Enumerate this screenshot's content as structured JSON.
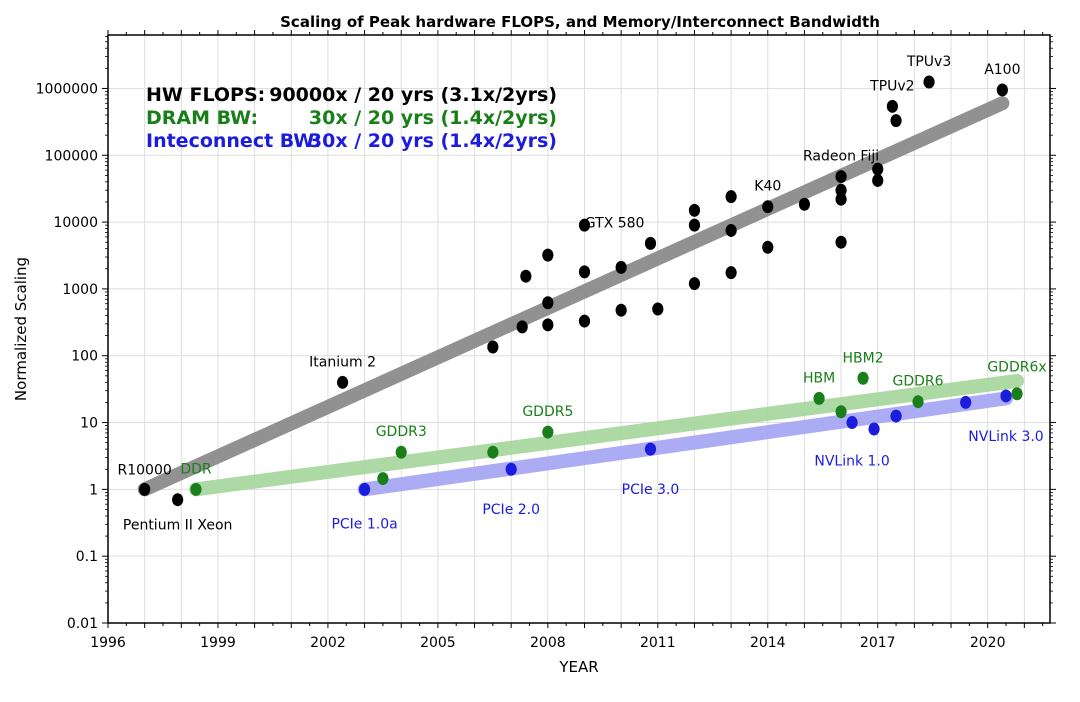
{
  "chart_data": {
    "type": "scatter",
    "title": "Scaling of Peak hardware FLOPS, and Memory/Interconnect Bandwidth",
    "xlabel": "YEAR",
    "ylabel": "Normalized Scaling",
    "xlim": [
      1996,
      2021.7
    ],
    "ylim_log10": [
      -2,
      6.8
    ],
    "yscale": "log",
    "grid": true,
    "x_ticks": [
      {
        "value": 1996,
        "label": "1996"
      },
      {
        "value": 1999,
        "label": "1999"
      },
      {
        "value": 2002,
        "label": "2002"
      },
      {
        "value": 2005,
        "label": "2005"
      },
      {
        "value": 2008,
        "label": "2008"
      },
      {
        "value": 2011,
        "label": "2011"
      },
      {
        "value": 2014,
        "label": "2014"
      },
      {
        "value": 2017,
        "label": "2017"
      },
      {
        "value": 2020,
        "label": "2020"
      }
    ],
    "y_ticks": [
      {
        "value": 0.01,
        "label": "0.01"
      },
      {
        "value": 0.1,
        "label": "0.1"
      },
      {
        "value": 1,
        "label": "1"
      },
      {
        "value": 10,
        "label": "10"
      },
      {
        "value": 100,
        "label": "100"
      },
      {
        "value": 1000,
        "label": "1000"
      },
      {
        "value": 10000,
        "label": "10000"
      },
      {
        "value": 100000,
        "label": "100000"
      },
      {
        "value": 1000000,
        "label": "1000000"
      }
    ],
    "legend": [
      {
        "name": "HW FLOPS:",
        "value": "90000x / 20 yrs (3.1x/2yrs)",
        "color": "#000000"
      },
      {
        "name": "DRAM BW:",
        "value": "30x / 20 yrs (1.4x/2yrs)",
        "color": "#1a7f1a"
      },
      {
        "name": "Inteconnect BW:",
        "value": "30x / 20 yrs (1.4x/2yrs)",
        "color": "#1c1cdc"
      }
    ],
    "trend_lines": [
      {
        "name": "HW FLOPS trend",
        "color": "#8c8c8c",
        "x": [
          1997,
          2020.4
        ],
        "y": [
          1,
          600000
        ]
      },
      {
        "name": "DRAM BW trend",
        "color": "#a8d8a0",
        "x": [
          1998.4,
          2020.8
        ],
        "y": [
          1,
          42
        ]
      },
      {
        "name": "Interconnect BW trend",
        "color": "#a8a8f4",
        "x": [
          2003,
          2020.5
        ],
        "y": [
          1,
          23
        ]
      }
    ],
    "series": [
      {
        "name": "HW FLOPS",
        "color": "#000000",
        "points": [
          {
            "x": 1997.0,
            "y": 1
          },
          {
            "x": 1997.9,
            "y": 0.7
          },
          {
            "x": 2002.4,
            "y": 40
          },
          {
            "x": 2006.5,
            "y": 135
          },
          {
            "x": 2007.3,
            "y": 270
          },
          {
            "x": 2007.4,
            "y": 1550
          },
          {
            "x": 2008.0,
            "y": 290
          },
          {
            "x": 2008.0,
            "y": 620
          },
          {
            "x": 2008.0,
            "y": 3200
          },
          {
            "x": 2009.0,
            "y": 330
          },
          {
            "x": 2009.0,
            "y": 1800
          },
          {
            "x": 2009.0,
            "y": 9000
          },
          {
            "x": 2010.0,
            "y": 480
          },
          {
            "x": 2010.0,
            "y": 2100
          },
          {
            "x": 2010.8,
            "y": 4800
          },
          {
            "x": 2011.0,
            "y": 500
          },
          {
            "x": 2012.0,
            "y": 1200
          },
          {
            "x": 2012.0,
            "y": 9000
          },
          {
            "x": 2012.0,
            "y": 15000
          },
          {
            "x": 2013.0,
            "y": 1750
          },
          {
            "x": 2013.0,
            "y": 7500
          },
          {
            "x": 2013.0,
            "y": 24000
          },
          {
            "x": 2014.0,
            "y": 4200
          },
          {
            "x": 2014.0,
            "y": 17000
          },
          {
            "x": 2015.0,
            "y": 18500
          },
          {
            "x": 2016.0,
            "y": 5000
          },
          {
            "x": 2016.0,
            "y": 22000
          },
          {
            "x": 2016.0,
            "y": 30000
          },
          {
            "x": 2016.0,
            "y": 48000
          },
          {
            "x": 2017.0,
            "y": 42000
          },
          {
            "x": 2017.0,
            "y": 62000
          },
          {
            "x": 2017.4,
            "y": 540000
          },
          {
            "x": 2017.5,
            "y": 330000
          },
          {
            "x": 2018.4,
            "y": 1250000
          },
          {
            "x": 2020.4,
            "y": 950000
          }
        ]
      },
      {
        "name": "DRAM BW",
        "color": "#1a7f1a",
        "points": [
          {
            "x": 1998.4,
            "y": 1
          },
          {
            "x": 2003.5,
            "y": 1.45
          },
          {
            "x": 2004.0,
            "y": 3.6
          },
          {
            "x": 2006.5,
            "y": 3.6
          },
          {
            "x": 2008.0,
            "y": 7.2
          },
          {
            "x": 2015.4,
            "y": 23
          },
          {
            "x": 2016.0,
            "y": 14.5
          },
          {
            "x": 2016.6,
            "y": 46
          },
          {
            "x": 2018.1,
            "y": 20.5
          },
          {
            "x": 2020.8,
            "y": 27
          }
        ]
      },
      {
        "name": "Interconnect BW",
        "color": "#1c1cdc",
        "points": [
          {
            "x": 2003.0,
            "y": 1
          },
          {
            "x": 2007.0,
            "y": 2
          },
          {
            "x": 2010.8,
            "y": 4
          },
          {
            "x": 2016.3,
            "y": 10
          },
          {
            "x": 2016.9,
            "y": 8
          },
          {
            "x": 2017.5,
            "y": 12.5
          },
          {
            "x": 2019.4,
            "y": 20
          },
          {
            "x": 2020.5,
            "y": 25
          }
        ]
      }
    ],
    "annotations": [
      {
        "text": "R10000",
        "x": 1997.0,
        "y": 1,
        "color": "#000000",
        "anchor": "middle",
        "dx": 0,
        "dy": -15
      },
      {
        "text": "Pentium II Xeon",
        "x": 1997.9,
        "y": 0.7,
        "color": "#000000",
        "anchor": "middle",
        "dx": 0,
        "dy": 30
      },
      {
        "text": "Itanium 2",
        "x": 2002.4,
        "y": 40,
        "color": "#000000",
        "anchor": "middle",
        "dx": 0,
        "dy": -16
      },
      {
        "text": "GTX 580",
        "x": 2010.8,
        "y": 4800,
        "color": "#000000",
        "anchor": "end",
        "dx": -6,
        "dy": -16
      },
      {
        "text": "K40",
        "x": 2014.0,
        "y": 17000,
        "color": "#000000",
        "anchor": "middle",
        "dx": 0,
        "dy": -16
      },
      {
        "text": "Radeon Fiji",
        "x": 2016.0,
        "y": 48000,
        "color": "#000000",
        "anchor": "middle",
        "dx": 0,
        "dy": -16
      },
      {
        "text": "TPUv2",
        "x": 2017.4,
        "y": 540000,
        "color": "#000000",
        "anchor": "middle",
        "dx": 0,
        "dy": -16
      },
      {
        "text": "TPUv3",
        "x": 2018.4,
        "y": 1250000,
        "color": "#000000",
        "anchor": "middle",
        "dx": 0,
        "dy": -16
      },
      {
        "text": "A100",
        "x": 2020.4,
        "y": 950000,
        "color": "#000000",
        "anchor": "middle",
        "dx": 0,
        "dy": -16
      },
      {
        "text": "DDR",
        "x": 1998.4,
        "y": 1,
        "color": "#1a7f1a",
        "anchor": "middle",
        "dx": 0,
        "dy": -16
      },
      {
        "text": "GDDR3",
        "x": 2004.0,
        "y": 3.6,
        "color": "#1a7f1a",
        "anchor": "middle",
        "dx": 0,
        "dy": -16
      },
      {
        "text": "GDDR5",
        "x": 2008.0,
        "y": 7.2,
        "color": "#1a7f1a",
        "anchor": "middle",
        "dx": 0,
        "dy": -16
      },
      {
        "text": "HBM",
        "x": 2015.4,
        "y": 23,
        "color": "#1a7f1a",
        "anchor": "middle",
        "dx": 0,
        "dy": -16
      },
      {
        "text": "HBM2",
        "x": 2016.6,
        "y": 46,
        "color": "#1a7f1a",
        "anchor": "middle",
        "dx": 0,
        "dy": -16
      },
      {
        "text": "GDDR6",
        "x": 2018.1,
        "y": 20.5,
        "color": "#1a7f1a",
        "anchor": "middle",
        "dx": 0,
        "dy": -16
      },
      {
        "text": "GDDR6x",
        "x": 2020.8,
        "y": 27,
        "color": "#1a7f1a",
        "anchor": "middle",
        "dx": 0,
        "dy": -22
      },
      {
        "text": "PCIe 1.0a",
        "x": 2003.0,
        "y": 1,
        "color": "#1c1cdc",
        "anchor": "middle",
        "dx": 0,
        "dy": 39
      },
      {
        "text": "PCIe 2.0",
        "x": 2007.0,
        "y": 2,
        "color": "#1c1cdc",
        "anchor": "middle",
        "dx": 0,
        "dy": 45
      },
      {
        "text": "PCIe 3.0",
        "x": 2010.8,
        "y": 4,
        "color": "#1c1cdc",
        "anchor": "middle",
        "dx": 0,
        "dy": 45
      },
      {
        "text": "NVLink 1.0",
        "x": 2016.3,
        "y": 10,
        "color": "#1c1cdc",
        "anchor": "middle",
        "dx": 0,
        "dy": 43
      },
      {
        "text": "NVLink 3.0",
        "x": 2020.5,
        "y": 25,
        "color": "#1c1cdc",
        "anchor": "middle",
        "dx": 0,
        "dy": 45
      }
    ]
  }
}
